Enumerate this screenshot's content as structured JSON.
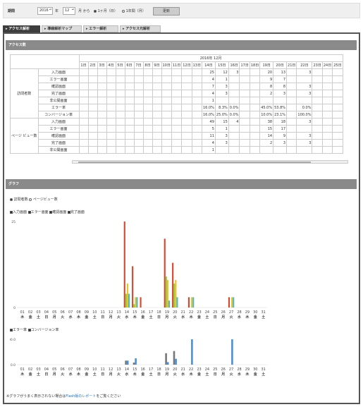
{
  "period": {
    "label": "期間",
    "year": "2016",
    "year_suffix": "年",
    "month": "12",
    "month_suffix": "月 から",
    "opt_1month": "1ヶ月（日）",
    "opt_1year": "1年間（月）",
    "update_button": "更新"
  },
  "tabs": [
    "アクセス解析",
    "導線解析マップ",
    "エラー解析",
    "アクセス元解析"
  ],
  "access": {
    "title": "アクセス数",
    "month_label": "2016年 12月",
    "days": [
      "1日",
      "2日",
      "3日",
      "4日",
      "5日",
      "6日",
      "7日",
      "8日",
      "9日",
      "10日",
      "11日",
      "12日",
      "13日",
      "14日",
      "15日",
      "16日",
      "17日",
      "18日",
      "19日",
      "20日",
      "21日",
      "22日",
      "23日",
      "24日",
      "25日"
    ],
    "group_visitors": "訪問者数",
    "group_pageviews": "ページ ビュー数",
    "visitor_rows": [
      {
        "label": "入力画面",
        "cells": {
          "13": "25",
          "14": "12",
          "15": "3",
          "18": "20",
          "19": "13",
          "21": "3"
        }
      },
      {
        "label": "エラー画面",
        "cells": {
          "13": "4",
          "14": "1",
          "18": "9",
          "19": "7"
        }
      },
      {
        "label": "確認画面",
        "cells": {
          "13": "7",
          "14": "3",
          "18": "8",
          "19": "8",
          "21": "3"
        }
      },
      {
        "label": "完了画面",
        "cells": {
          "13": "4",
          "14": "3",
          "18": "2",
          "19": "3",
          "21": "3"
        }
      },
      {
        "label": "非公開画面",
        "cells": {
          "13": "1"
        }
      },
      {
        "label": "エラー率",
        "cells": {
          "13": "16.0%",
          "14": "8.3%",
          "15": "0.0%",
          "18": "45.0%",
          "19": "53.8%",
          "21": "0.0%"
        }
      },
      {
        "label": "コンバージョン率",
        "cells": {
          "13": "16.0%",
          "14": "25.0%",
          "15": "0.0%",
          "18": "10.0%",
          "19": "23.1%",
          "21": "100.0%"
        }
      }
    ],
    "pageview_rows": [
      {
        "label": "入力画面",
        "cells": {
          "13": "49",
          "14": "15",
          "15": "4",
          "18": "38",
          "19": "18",
          "21": "3"
        }
      },
      {
        "label": "エラー画面",
        "cells": {
          "13": "5",
          "14": "1",
          "18": "15",
          "19": "17"
        }
      },
      {
        "label": "確認画面",
        "cells": {
          "13": "11",
          "14": "3",
          "18": "14",
          "19": "9",
          "21": "3"
        }
      },
      {
        "label": "完了画面",
        "cells": {
          "13": "4",
          "14": "3",
          "18": "2",
          "19": "3",
          "21": "3"
        }
      },
      {
        "label": "非公開画面",
        "cells": {
          "13": "1"
        }
      }
    ]
  },
  "graph": {
    "title": "グラフ",
    "opt_visitors": "訪問者数",
    "opt_pageviews": "ページビュー数",
    "series_checks": [
      "入力画面",
      "エラー画面",
      "確認画面",
      "完了画面"
    ],
    "rate_checks": [
      "エラー率",
      "コンバージョン率"
    ],
    "footer_prefix": "※グラフがうまく表示されない場合は",
    "footer_link": "Flash版のレポート",
    "footer_suffix": "をご覧ください"
  },
  "chart_data": [
    {
      "type": "bar",
      "ylim": [
        0,
        25
      ],
      "yticks": [
        "25",
        "0"
      ],
      "categories": [
        "01",
        "02",
        "03",
        "04",
        "05",
        "06",
        "07",
        "08",
        "09",
        "10",
        "11",
        "12",
        "13",
        "14",
        "15",
        "16",
        "17",
        "18",
        "19",
        "20",
        "21",
        "22",
        "23",
        "24",
        "25",
        "26",
        "27",
        "28",
        "29",
        "30",
        "31"
      ],
      "weekdays": [
        "木",
        "金",
        "土",
        "日",
        "月",
        "火",
        "水",
        "木",
        "金",
        "土",
        "日",
        "月",
        "火",
        "水",
        "木",
        "金",
        "土",
        "日",
        "月",
        "火",
        "水",
        "木",
        "金",
        "土",
        "日",
        "月",
        "火",
        "水",
        "木",
        "金",
        "土"
      ],
      "colors": [
        "#d9442c",
        "#8ccf3c",
        "#e8c227",
        "#4fb8c4"
      ],
      "series": [
        {
          "name": "入力画面",
          "values": [
            0,
            0,
            0,
            0,
            0,
            0,
            0,
            0,
            0,
            0,
            0,
            0,
            0,
            25,
            12,
            3,
            0,
            0,
            20,
            13,
            0,
            3,
            0,
            0,
            0,
            0,
            3,
            0,
            0,
            0,
            0
          ]
        },
        {
          "name": "エラー画面",
          "values": [
            0,
            0,
            0,
            0,
            0,
            0,
            0,
            0,
            0,
            0,
            0,
            0,
            0,
            4,
            1,
            0,
            0,
            0,
            9,
            7,
            0,
            0,
            0,
            0,
            0,
            0,
            0,
            0,
            0,
            0,
            0
          ]
        },
        {
          "name": "確認画面",
          "values": [
            0,
            0,
            0,
            0,
            0,
            0,
            0,
            0,
            0,
            0,
            0,
            0,
            0,
            7,
            3,
            0,
            0,
            0,
            8,
            8,
            0,
            3,
            0,
            0,
            0,
            0,
            3,
            0,
            0,
            0,
            0
          ]
        },
        {
          "name": "完了画面",
          "values": [
            0,
            0,
            0,
            0,
            0,
            0,
            0,
            0,
            0,
            0,
            0,
            0,
            0,
            4,
            3,
            0,
            0,
            0,
            2,
            3,
            0,
            3,
            0,
            0,
            0,
            0,
            3,
            0,
            0,
            0,
            0
          ]
        }
      ]
    },
    {
      "type": "bar",
      "ylim": [
        0,
        100
      ],
      "yticks": [
        "100.0",
        "0.0"
      ],
      "categories": [
        "01",
        "02",
        "03",
        "04",
        "05",
        "06",
        "07",
        "08",
        "09",
        "10",
        "11",
        "12",
        "13",
        "14",
        "15",
        "16",
        "17",
        "18",
        "19",
        "20",
        "21",
        "22",
        "23",
        "24",
        "25",
        "26",
        "27",
        "28",
        "29",
        "30",
        "31"
      ],
      "weekdays": [
        "木",
        "金",
        "土",
        "日",
        "月",
        "火",
        "水",
        "木",
        "金",
        "土",
        "日",
        "月",
        "火",
        "水",
        "木",
        "金",
        "土",
        "日",
        "月",
        "火",
        "水",
        "木",
        "金",
        "土",
        "日",
        "月",
        "火",
        "水",
        "木",
        "金",
        "土"
      ],
      "colors": [
        "#777777",
        "#4a90d9"
      ],
      "series": [
        {
          "name": "エラー率",
          "values": [
            0,
            0,
            0,
            0,
            0,
            0,
            0,
            0,
            0,
            0,
            0,
            0,
            0,
            16,
            8.3,
            0,
            0,
            0,
            45,
            53.8,
            0,
            0,
            0,
            0,
            0,
            0,
            0,
            0,
            0,
            0,
            0
          ]
        },
        {
          "name": "コンバージョン率",
          "values": [
            0,
            0,
            0,
            0,
            0,
            0,
            0,
            0,
            0,
            0,
            0,
            0,
            0,
            16,
            25,
            0,
            0,
            0,
            10,
            23.1,
            0,
            100,
            0,
            0,
            0,
            0,
            100,
            0,
            0,
            0,
            0
          ]
        }
      ]
    }
  ]
}
